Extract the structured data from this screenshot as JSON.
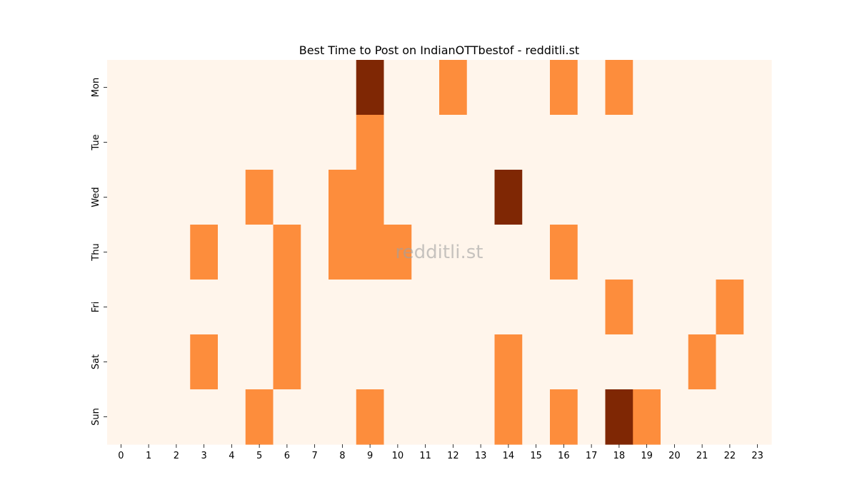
{
  "chart_data": {
    "type": "heatmap",
    "title": "Best Time to Post on IndianOTTbestof - redditli.st",
    "watermark": "redditli.st",
    "xlabel": "",
    "ylabel": "",
    "x": [
      0,
      1,
      2,
      3,
      4,
      5,
      6,
      7,
      8,
      9,
      10,
      11,
      12,
      13,
      14,
      15,
      16,
      17,
      18,
      19,
      20,
      21,
      22,
      23
    ],
    "y": [
      "Mon",
      "Tue",
      "Wed",
      "Thu",
      "Fri",
      "Sat",
      "Sun"
    ],
    "values": [
      [
        0,
        0,
        0,
        0,
        0,
        0,
        0,
        0,
        0,
        2,
        0,
        0,
        1,
        0,
        0,
        0,
        1,
        0,
        1,
        0,
        0,
        0,
        0,
        0
      ],
      [
        0,
        0,
        0,
        0,
        0,
        0,
        0,
        0,
        0,
        1,
        0,
        0,
        0,
        0,
        0,
        0,
        0,
        0,
        0,
        0,
        0,
        0,
        0,
        0
      ],
      [
        0,
        0,
        0,
        0,
        0,
        1,
        0,
        0,
        1,
        1,
        0,
        0,
        0,
        0,
        2,
        0,
        0,
        0,
        0,
        0,
        0,
        0,
        0,
        0
      ],
      [
        0,
        0,
        0,
        1,
        0,
        0,
        1,
        0,
        1,
        1,
        1,
        0,
        0,
        0,
        0,
        0,
        1,
        0,
        0,
        0,
        0,
        0,
        0,
        0
      ],
      [
        0,
        0,
        0,
        0,
        0,
        0,
        1,
        0,
        0,
        0,
        0,
        0,
        0,
        0,
        0,
        0,
        0,
        0,
        1,
        0,
        0,
        0,
        1,
        0
      ],
      [
        0,
        0,
        0,
        1,
        0,
        0,
        1,
        0,
        0,
        0,
        0,
        0,
        0,
        0,
        1,
        0,
        0,
        0,
        0,
        0,
        0,
        1,
        0,
        0
      ],
      [
        0,
        0,
        0,
        0,
        0,
        1,
        0,
        0,
        0,
        1,
        0,
        0,
        0,
        0,
        1,
        0,
        1,
        0,
        2,
        1,
        0,
        0,
        0,
        0
      ]
    ],
    "colors": [
      "#fff5eb",
      "#fd8d3c",
      "#7f2704"
    ],
    "grid": false,
    "colorbar": false
  }
}
